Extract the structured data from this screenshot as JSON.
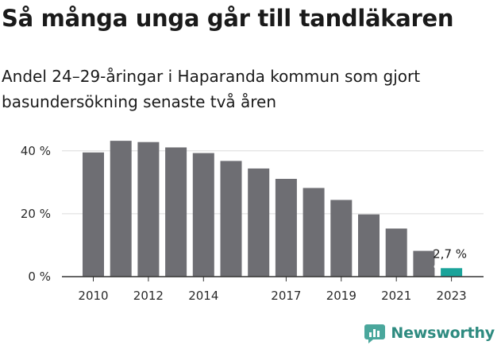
{
  "header": {
    "title": "Så många unga går till tandläkaren",
    "subtitle": "Andel 24–29-åringar i Haparanda kommun som gjort basundersökning senaste två åren"
  },
  "brand": {
    "name": "Newsworthy",
    "icon": "newsworthy-logo-icon",
    "color": "#2e8b80"
  },
  "chart_data": {
    "type": "bar",
    "x": [
      2010,
      2011,
      2012,
      2013,
      2014,
      2015,
      2016,
      2017,
      2018,
      2019,
      2020,
      2021,
      2022,
      2023
    ],
    "values": [
      39.5,
      43.2,
      42.8,
      41.1,
      39.3,
      36.8,
      34.4,
      31.1,
      28.2,
      24.4,
      19.8,
      15.3,
      8.2,
      2.7
    ],
    "x_tick_labels": [
      "2010",
      "2012",
      "2014",
      "2017",
      "2019",
      "2021",
      "2023"
    ],
    "x_tick_values": [
      2010,
      2012,
      2014,
      2017,
      2019,
      2021,
      2023
    ],
    "y_ticks": [
      0,
      20,
      40
    ],
    "y_tick_labels": [
      "0 %",
      "20 %",
      "40 %"
    ],
    "ylim": [
      0,
      45
    ],
    "grid": true,
    "highlight": {
      "index": 13,
      "label": "2,7 %"
    },
    "colors": {
      "bar": "#6e6e73",
      "highlight": "#1aa39a",
      "grid": "#dcdcdc",
      "axis": "#333333"
    }
  }
}
